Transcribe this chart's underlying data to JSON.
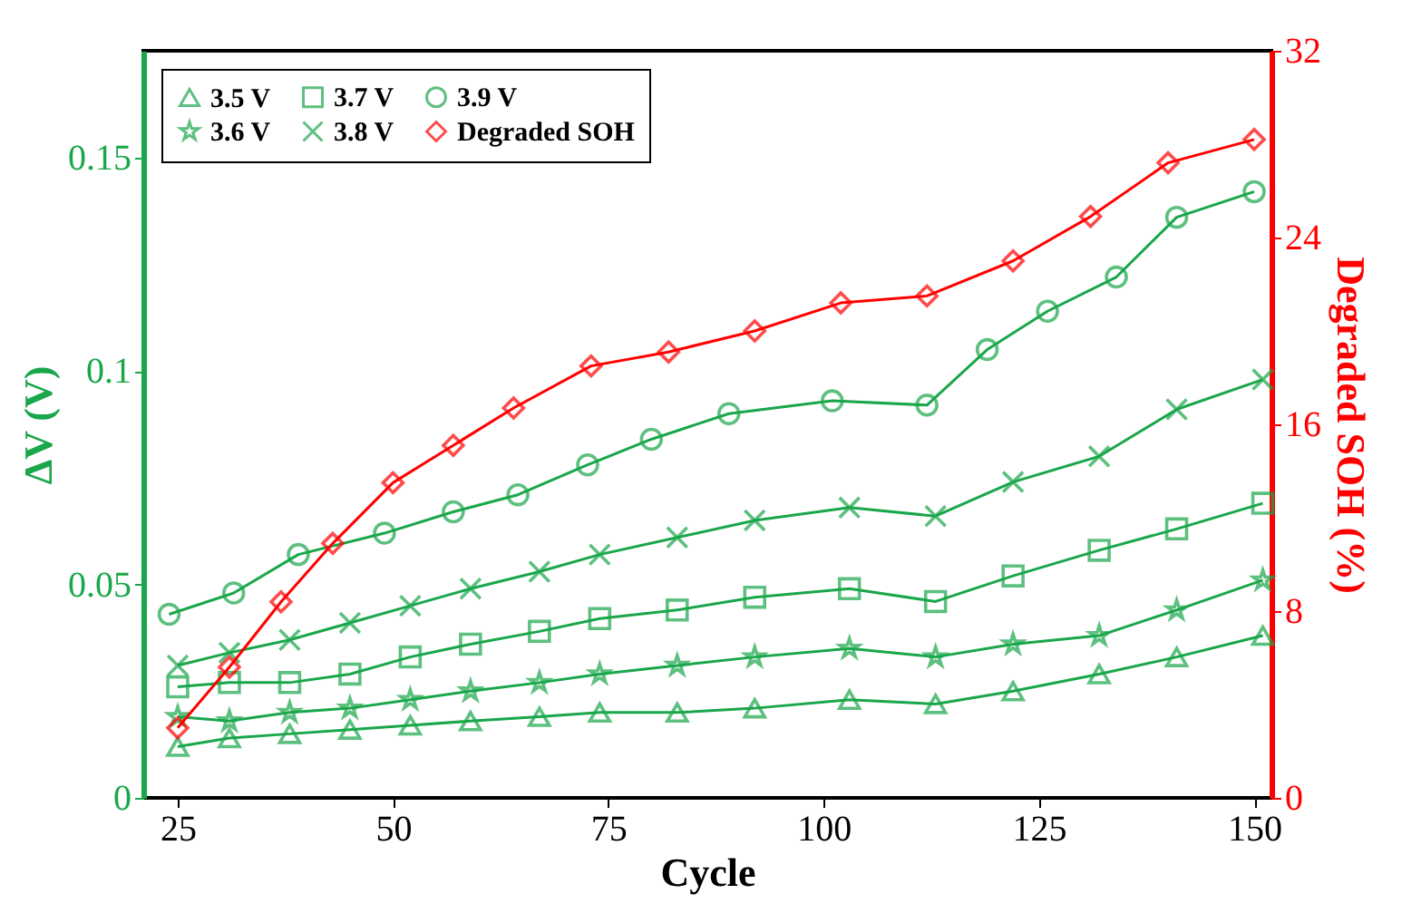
{
  "chart_data": {
    "type": "line",
    "xlabel": "Cycle",
    "ylabel": "ΔV (V)",
    "y2label": "Degraded SOH (%)",
    "x": [
      25,
      31,
      38,
      45,
      52,
      59,
      67,
      74,
      83,
      92,
      103,
      113,
      122,
      132,
      141,
      151
    ],
    "xlim": [
      21,
      152
    ],
    "xticks": [
      25,
      50,
      75,
      100,
      125,
      150
    ],
    "ylim": [
      0,
      0.175
    ],
    "yticks": [
      0,
      0.05,
      0.1,
      0.15
    ],
    "y2lim": [
      0,
      32
    ],
    "y2ticks": [
      0,
      8,
      16,
      24,
      32
    ],
    "grid": false,
    "legend": "top left",
    "line_style": "solid",
    "series": [
      {
        "name": "3.5 V",
        "color": "#1aa64a",
        "marker": "triangle",
        "values": [
          0.012,
          0.014,
          0.015,
          0.016,
          0.017,
          0.018,
          0.019,
          0.02,
          0.02,
          0.021,
          0.023,
          0.022,
          0.025,
          0.029,
          0.033,
          0.038
        ]
      },
      {
        "name": "3.6 V",
        "color": "#1aa64a",
        "marker": "star",
        "values": [
          0.019,
          0.018,
          0.02,
          0.021,
          0.023,
          0.025,
          0.027,
          0.029,
          0.031,
          0.033,
          0.035,
          0.033,
          0.036,
          0.038,
          0.044,
          0.051
        ]
      },
      {
        "name": "3.7 V",
        "color": "#1aa64a",
        "marker": "square",
        "values": [
          0.026,
          0.027,
          0.027,
          0.029,
          0.033,
          0.036,
          0.039,
          0.042,
          0.044,
          0.047,
          0.049,
          0.046,
          0.052,
          0.058,
          0.063,
          0.069
        ]
      },
      {
        "name": "3.8 V",
        "color": "#1aa64a",
        "marker": "cross",
        "values": [
          0.031,
          0.034,
          0.037,
          0.041,
          0.045,
          0.049,
          0.053,
          0.057,
          0.061,
          0.065,
          0.068,
          0.066,
          0.074,
          0.08,
          0.091,
          0.098
        ]
      },
      {
        "name": "3.9 V",
        "color": "#1aa64a",
        "marker": "circle",
        "x": [
          24,
          31.5,
          39,
          49,
          57,
          64.5,
          72.6,
          80,
          89,
          101,
          112,
          119,
          126,
          134,
          141,
          150
        ],
        "values": [
          0.043,
          0.048,
          0.057,
          0.062,
          0.067,
          0.071,
          0.078,
          0.084,
          0.09,
          0.093,
          0.092,
          0.105,
          0.114,
          0.122,
          0.136,
          0.142
        ]
      },
      {
        "name": "Degraded SOH",
        "color": "#ff0000",
        "marker": "diamond",
        "axis": "y2",
        "x": [
          25,
          31,
          37,
          43,
          50,
          57,
          64,
          73,
          82,
          92,
          102,
          112,
          122,
          131,
          140,
          150
        ],
        "values": [
          3.0,
          5.6,
          8.4,
          10.9,
          13.5,
          15.1,
          16.7,
          18.5,
          19.1,
          20.0,
          21.2,
          21.5,
          23.0,
          24.9,
          27.2,
          28.2
        ]
      }
    ]
  }
}
